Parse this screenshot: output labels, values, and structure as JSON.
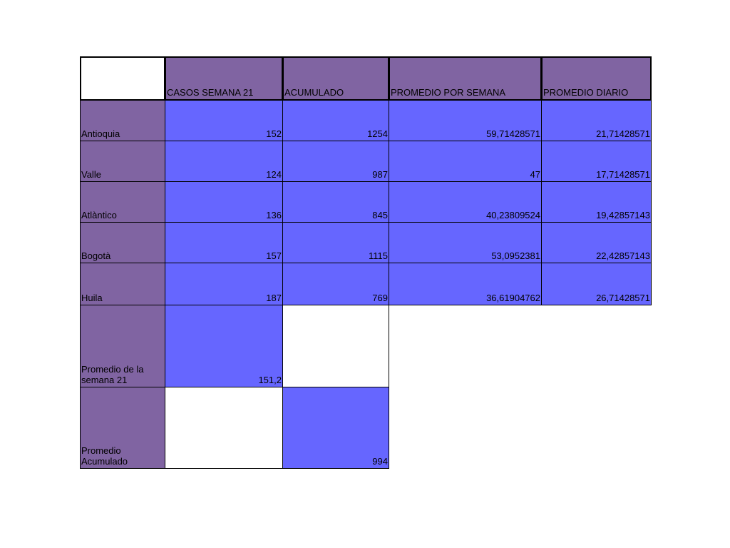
{
  "colors": {
    "header_purple": "#8064a2",
    "cell_blue": "#6666ff",
    "blank": "#ffffff"
  },
  "table": {
    "headers": [
      "",
      "CASOS SEMANA 21",
      "ACUMULADO",
      "PROMEDIO POR SEMANA",
      "PROMEDIO DIARIO"
    ],
    "rows": [
      {
        "label": "Antioquia",
        "casos": "152",
        "acumulado": "1254",
        "prom_semana": "59,71428571",
        "prom_diario": "21,71428571"
      },
      {
        "label": "Valle",
        "casos": "124",
        "acumulado": "987",
        "prom_semana": "47",
        "prom_diario": "17,71428571"
      },
      {
        "label": "Atlàntico",
        "casos": "136",
        "acumulado": "845",
        "prom_semana": "40,23809524",
        "prom_diario": "19,42857143"
      },
      {
        "label": "Bogotà",
        "casos": "157",
        "acumulado": "1115",
        "prom_semana": "53,0952381",
        "prom_diario": "22,42857143"
      },
      {
        "label": "Huila",
        "casos": "187",
        "acumulado": "769",
        "prom_semana": "36,61904762",
        "prom_diario": "26,71428571"
      }
    ],
    "summary": {
      "promedio_semana_label": "Promedio de la semana 21",
      "promedio_semana_value": "151,2",
      "promedio_acumulado_label": "Promedio Acumulado",
      "promedio_acumulado_value": "994"
    }
  }
}
